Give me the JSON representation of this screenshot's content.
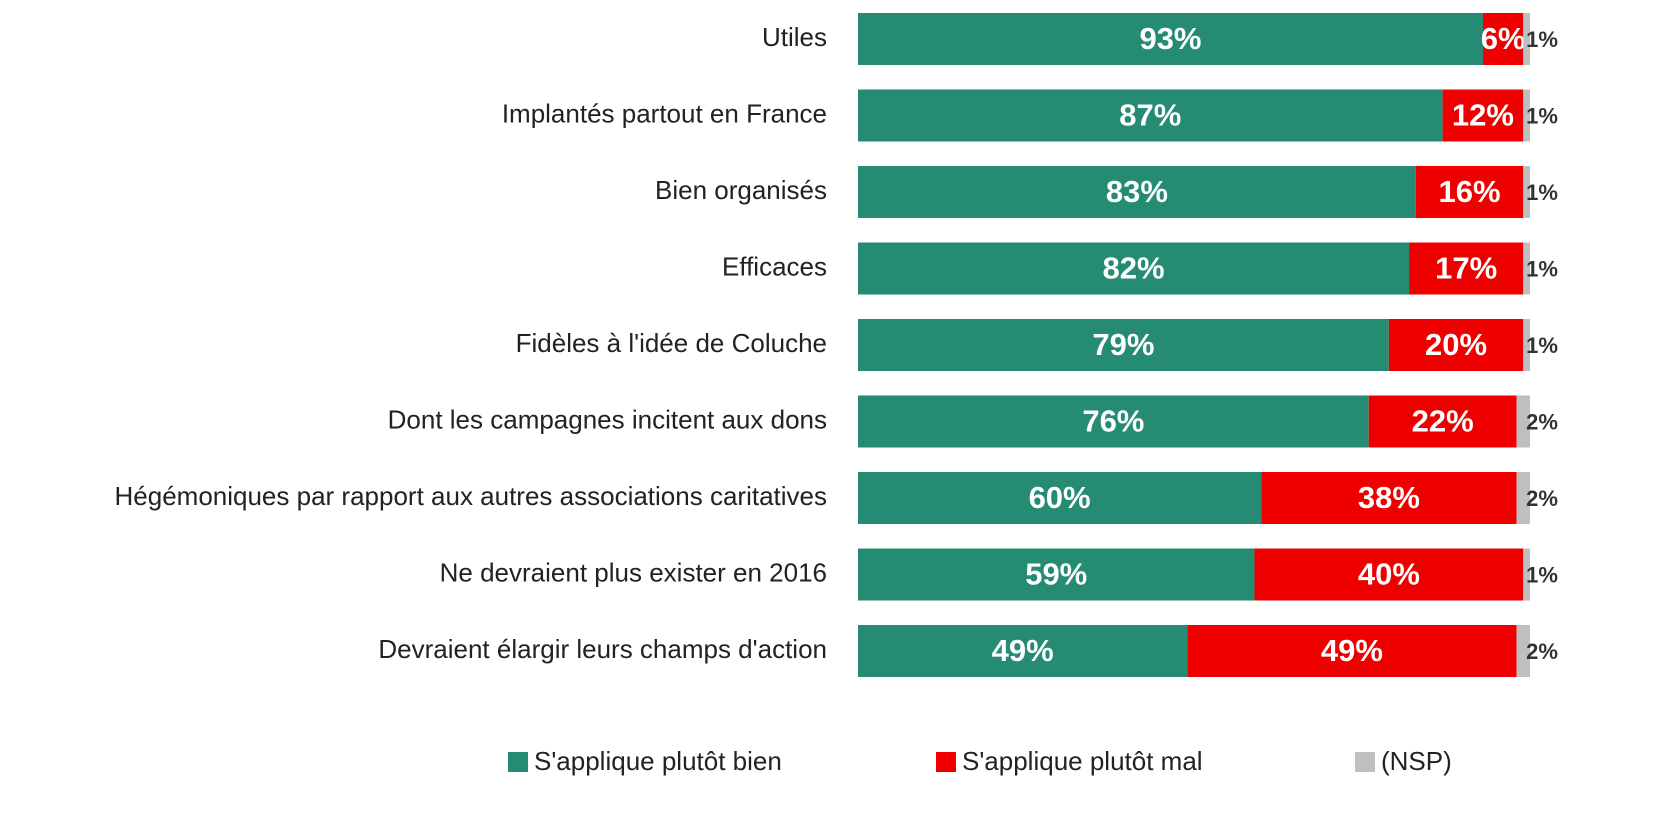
{
  "chart_data": {
    "type": "stacked_bar_horizontal",
    "categories": [
      "Utiles",
      "Implantés partout en France",
      "Bien organisés",
      "Efficaces",
      "Fidèles à l'idée de Coluche",
      "Dont les campagnes incitent aux dons",
      "Hégémoniques par rapport aux autres associations caritatives",
      "Ne devraient plus exister en 2016",
      "Devraient élargir leurs champs d'action"
    ],
    "series": [
      {
        "name": "S'applique plutôt bien",
        "color": "#268b73",
        "values": [
          93,
          87,
          83,
          82,
          79,
          76,
          60,
          59,
          49
        ],
        "value_labels": [
          "93%",
          "87%",
          "83%",
          "82%",
          "79%",
          "76%",
          "60%",
          "59%",
          "49%"
        ]
      },
      {
        "name": "S'applique plutôt mal",
        "color": "#ee0000",
        "values": [
          6,
          12,
          16,
          17,
          20,
          22,
          38,
          40,
          49
        ],
        "value_labels": [
          "6%",
          "12%",
          "16%",
          "17%",
          "20%",
          "22%",
          "38%",
          "40%",
          "49%"
        ]
      },
      {
        "name": "(NSP)",
        "color": "#bfbfbf",
        "values": [
          1,
          1,
          1,
          1,
          1,
          2,
          2,
          1,
          2
        ],
        "value_labels": [
          "1%",
          "1%",
          "1%",
          "1%",
          "1%",
          "2%",
          "2%",
          "1%",
          "2%"
        ]
      }
    ],
    "xlim": [
      0,
      100
    ]
  }
}
